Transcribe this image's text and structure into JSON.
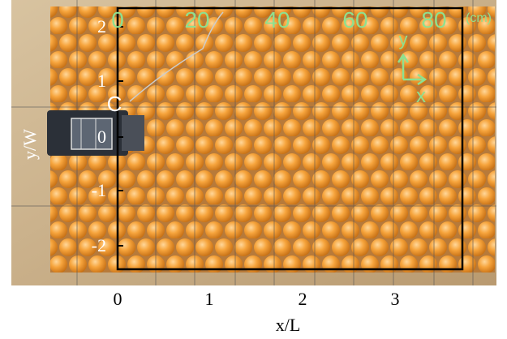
{
  "figure": {
    "x_axis": {
      "label": "x/L",
      "ticks": [
        "0",
        "1",
        "2",
        "3"
      ]
    },
    "y_axis": {
      "label": "y/W",
      "ticks": [
        "2",
        "1",
        "0",
        "-1",
        "-2"
      ]
    },
    "scale_bar": {
      "ticks": [
        "0",
        "20",
        "40",
        "60",
        "80"
      ],
      "unit": "(cm)"
    },
    "annotations": {
      "point": "C",
      "arrow_y": "y",
      "arrow_x": "x"
    }
  }
}
